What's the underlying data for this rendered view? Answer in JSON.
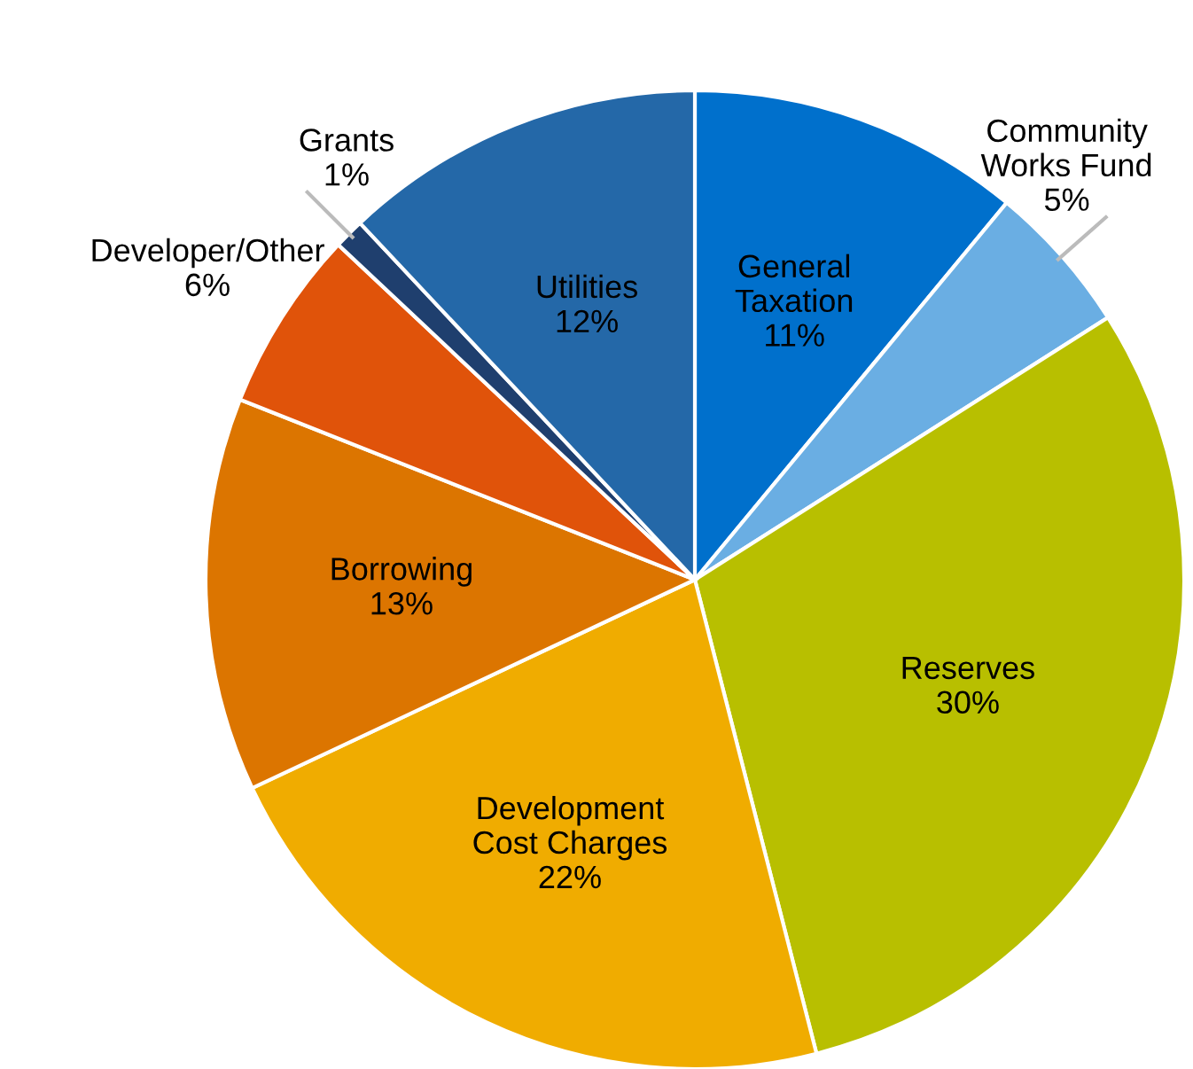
{
  "chart_data": {
    "type": "pie",
    "categories": [
      "General\nTaxation",
      "Community\nWorks Fund",
      "Reserves",
      "Development\nCost Charges",
      "Borrowing",
      "Developer/Other",
      "Grants",
      "Utilities"
    ],
    "values": [
      11,
      5,
      30,
      22,
      13,
      6,
      1,
      12
    ],
    "colors": [
      "#0070cc",
      "#6aaee3",
      "#b8bf00",
      "#f0ac00",
      "#dc7500",
      "#e0530a",
      "#1f3f6e",
      "#2468a8"
    ],
    "value_labels": [
      "11%",
      "5%",
      "30%",
      "22%",
      "13%",
      "6%",
      "1%",
      "12%"
    ],
    "legend": false
  }
}
